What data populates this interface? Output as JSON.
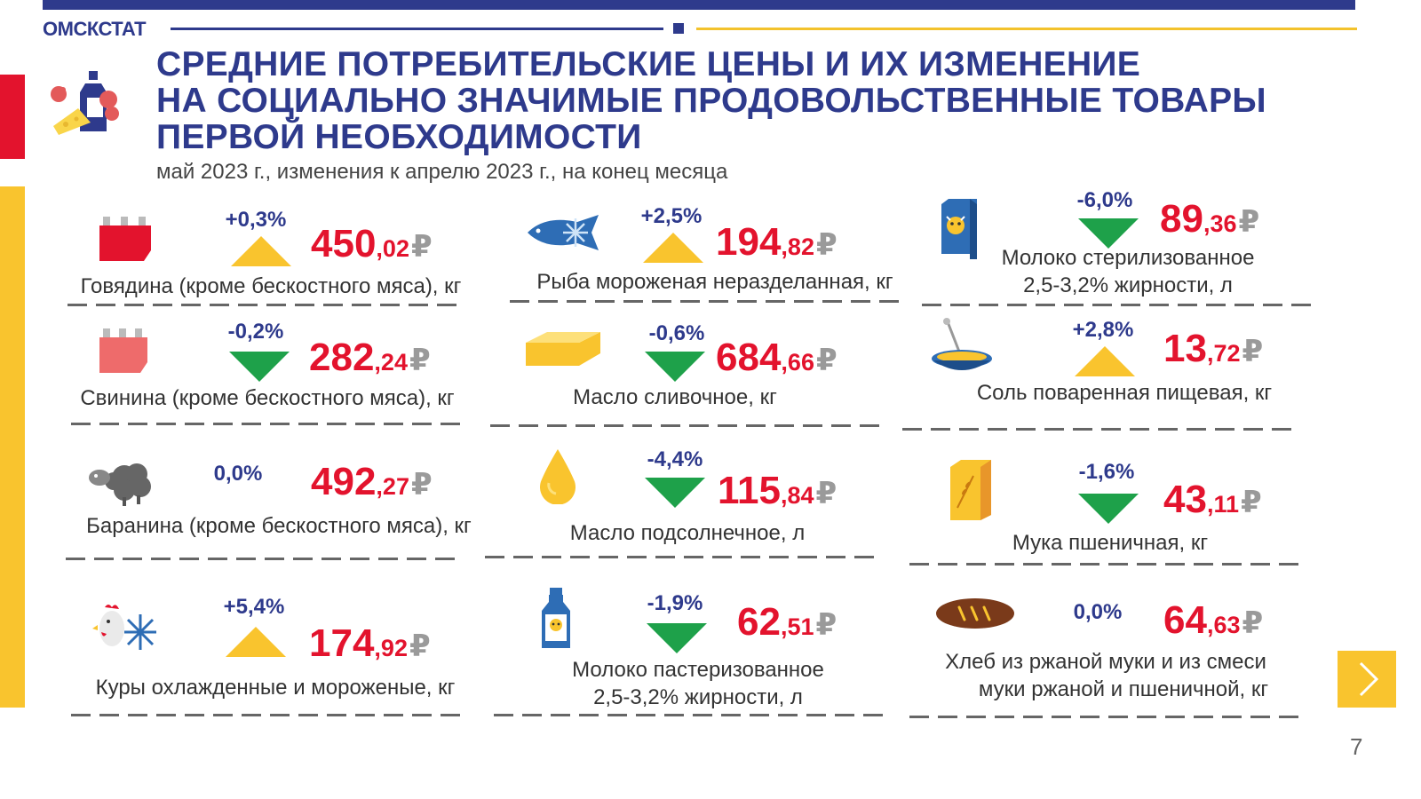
{
  "header": {
    "brand": "ОМСКСТАТ",
    "title_lines": [
      "СРЕДНИЕ ПОТРЕБИТЕЛЬСКИЕ ЦЕНЫ И ИХ ИЗМЕНЕНИЕ",
      "НА СОЦИАЛЬНО ЗНАЧИМЫЕ ПРОДОВОЛЬСТВЕННЫЕ ТОВАРЫ",
      "ПЕРВОЙ НЕОБХОДИМОСТИ"
    ],
    "subtitle": "май 2023 г., изменения к апрелю 2023 г., на конец месяца"
  },
  "colors": {
    "brand_blue": "#2e3a8c",
    "price_red": "#e3132d",
    "up_yellow": "#f9c42e",
    "down_green": "#1ea14a"
  },
  "products": [
    {
      "icon": "beef-icon",
      "change": "+0,3%",
      "direction": "up",
      "price_int": "450",
      "price_dec": ",02",
      "currency": "₽",
      "label_lines": [
        "Говядина (кроме бескостного мяса), кг"
      ]
    },
    {
      "icon": "frozen-fish-icon",
      "change": "+2,5%",
      "direction": "up",
      "price_int": "194",
      "price_dec": ",82",
      "currency": "₽",
      "label_lines": [
        "Рыба мороженая неразделанная, кг"
      ]
    },
    {
      "icon": "milk-carton-icon",
      "change": "-6,0%",
      "direction": "down",
      "price_int": "89",
      "price_dec": ",36",
      "currency": "₽",
      "label_lines": [
        "Молоко стерилизованное",
        "2,5-3,2% жирности, л"
      ]
    },
    {
      "icon": "pork-icon",
      "change": "-0,2%",
      "direction": "down",
      "price_int": "282",
      "price_dec": ",24",
      "currency": "₽",
      "label_lines": [
        "Свинина (кроме бескостного мяса), кг"
      ]
    },
    {
      "icon": "butter-icon",
      "change": "-0,6%",
      "direction": "down",
      "price_int": "684",
      "price_dec": ",66",
      "currency": "₽",
      "label_lines": [
        "Масло сливочное, кг"
      ]
    },
    {
      "icon": "salt-bowl-icon",
      "change": "+2,8%",
      "direction": "up",
      "price_int": "13",
      "price_dec": ",72",
      "currency": "₽",
      "label_lines": [
        "Соль поваренная пищевая, кг"
      ]
    },
    {
      "icon": "sheep-icon",
      "change": "0,0%",
      "direction": "none",
      "price_int": "492",
      "price_dec": ",27",
      "currency": "₽",
      "label_lines": [
        "Баранина (кроме бескостного мяса), кг"
      ]
    },
    {
      "icon": "oil-drop-icon",
      "change": "-4,4%",
      "direction": "down",
      "price_int": "115",
      "price_dec": ",84",
      "currency": "₽",
      "label_lines": [
        "Масло подсолнечное, л"
      ]
    },
    {
      "icon": "flour-bag-icon",
      "change": "-1,6%",
      "direction": "down",
      "price_int": "43",
      "price_dec": ",11",
      "currency": "₽",
      "label_lines": [
        "Мука пшеничная, кг"
      ]
    },
    {
      "icon": "chicken-icon",
      "change": "+5,4%",
      "direction": "up",
      "price_int": "174",
      "price_dec": ",92",
      "currency": "₽",
      "label_lines": [
        "Куры охлажденные и мороженые, кг"
      ]
    },
    {
      "icon": "milk-bottle-icon",
      "change": "-1,9%",
      "direction": "down",
      "price_int": "62",
      "price_dec": ",51",
      "currency": "₽",
      "label_lines": [
        "Молоко пастеризованное",
        "2,5-3,2% жирности, л"
      ]
    },
    {
      "icon": "rye-bread-icon",
      "change": "0,0%",
      "direction": "none",
      "price_int": "64",
      "price_dec": ",63",
      "currency": "₽",
      "label_lines": [
        "Хлеб из ржаной муки и из смеси",
        "муки ржаной и пшеничной, кг"
      ]
    }
  ],
  "nav": {
    "next_icon": "chevron-right-icon"
  },
  "page_number": "7"
}
